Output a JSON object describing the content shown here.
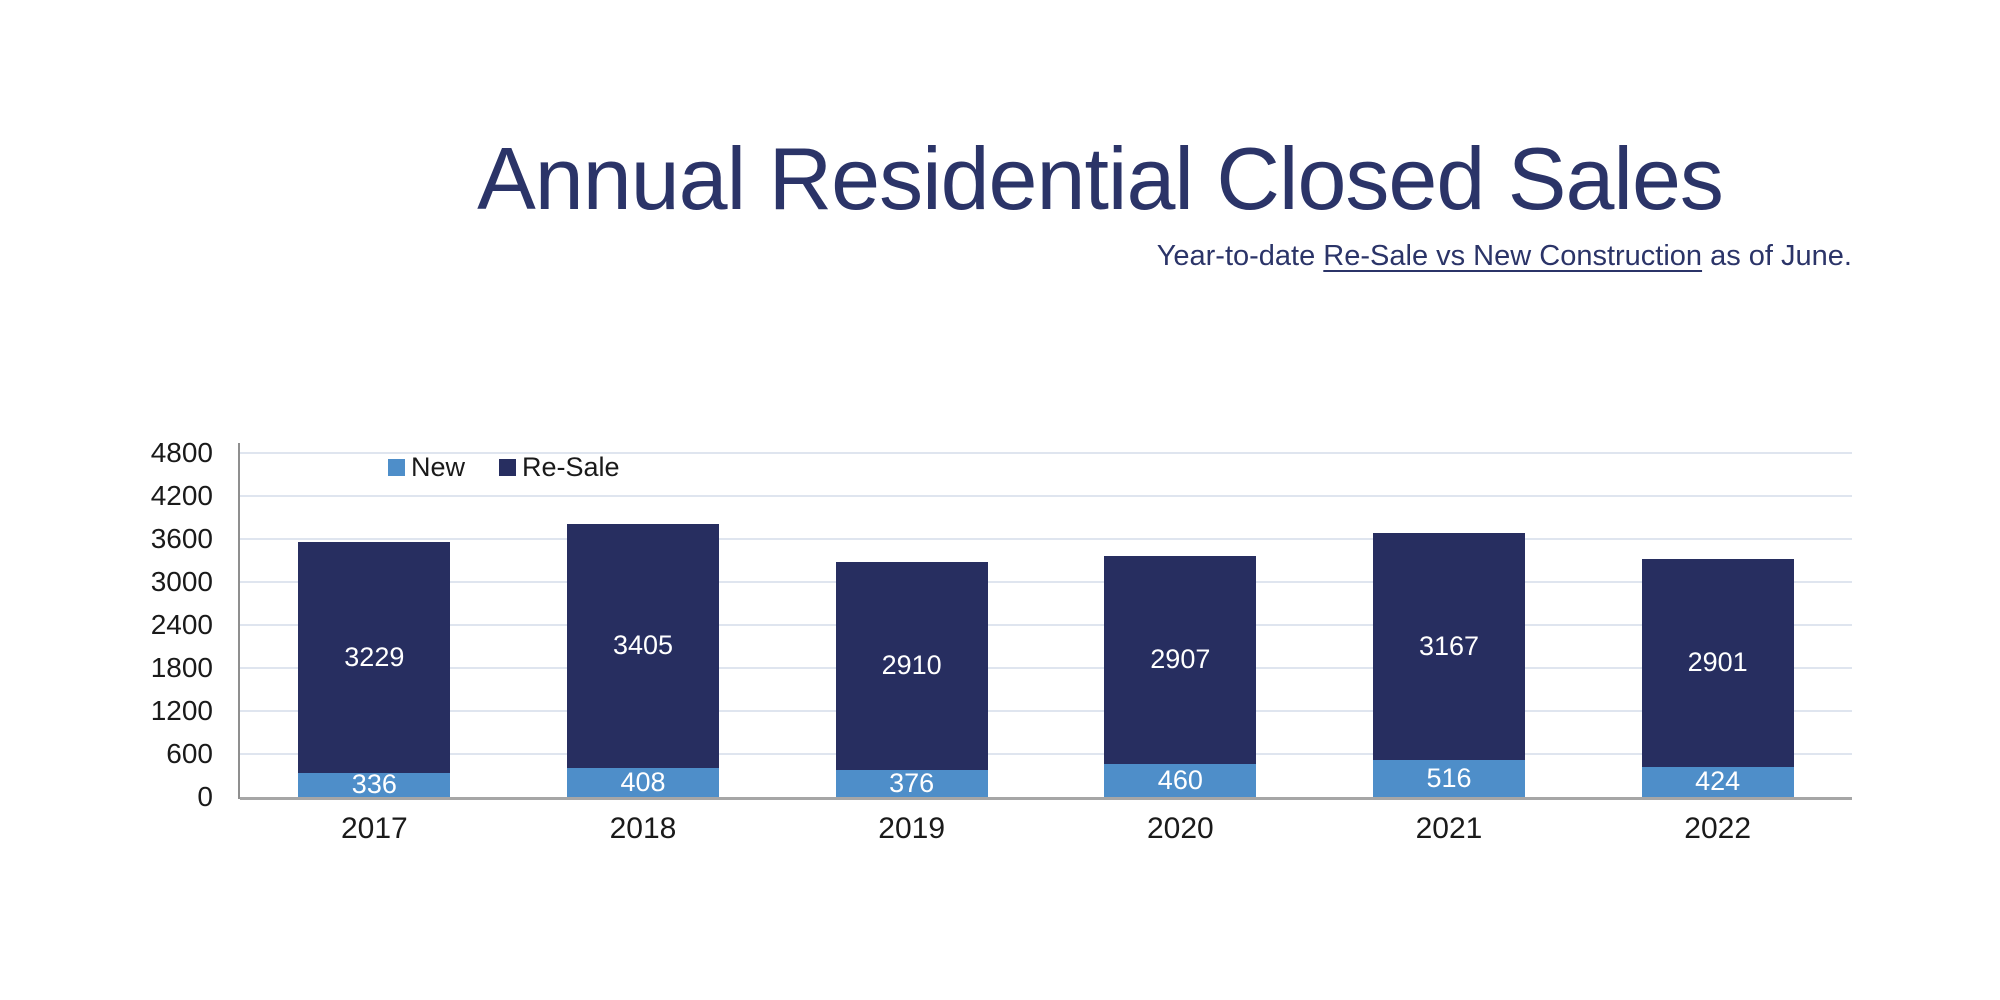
{
  "header": {
    "title": "Annual Residential Closed Sales",
    "subtitle_prefix": "Year-to-date ",
    "subtitle_underlined": "Re-Sale vs New Construction",
    "subtitle_suffix": " as of June."
  },
  "colors": {
    "title_text": "#2b3468",
    "new_bar": "#4e8ec9",
    "resale_bar": "#272e60",
    "gridline": "#dfe5ef",
    "axis_line": "#a6a6a6",
    "tick_text": "#1a1a1a",
    "value_label_text": "#ffffff"
  },
  "legend": {
    "items": [
      {
        "label": "New",
        "color": "#4e8ec9"
      },
      {
        "label": "Re-Sale",
        "color": "#272e60"
      }
    ]
  },
  "chart_data": {
    "type": "bar",
    "stacked": true,
    "title": "Annual Residential Closed Sales",
    "subtitle": "Year-to-date Re-Sale vs New Construction as of June.",
    "categories": [
      "2017",
      "2018",
      "2019",
      "2020",
      "2021",
      "2022"
    ],
    "series": [
      {
        "name": "New",
        "color": "#4e8ec9",
        "values": [
          336,
          408,
          376,
          460,
          516,
          424
        ]
      },
      {
        "name": "Re-Sale",
        "color": "#272e60",
        "values": [
          3229,
          3405,
          2910,
          2907,
          3167,
          2901
        ]
      }
    ],
    "totals": [
      3565,
      3813,
      3286,
      3367,
      3683,
      3325
    ],
    "xlabel": "",
    "ylabel": "",
    "ylim": [
      0,
      4800
    ],
    "yticks": [
      0,
      600,
      1200,
      1800,
      2400,
      3000,
      3600,
      4200,
      4800
    ],
    "grid": true,
    "legend_position": "top-left-inside",
    "value_labels": true
  }
}
